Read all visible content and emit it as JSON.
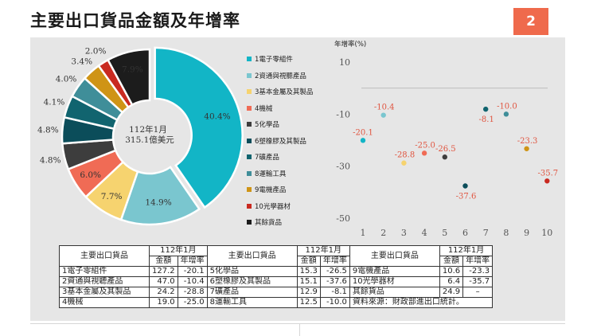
{
  "title": "主要出口貨品金額及年增率",
  "page_number": "2",
  "legend": [
    {
      "label": "1電子零組件",
      "color": "#12b5c6"
    },
    {
      "label": "2資通與視聽產品",
      "color": "#7ac6cf"
    },
    {
      "label": "3基本金屬及其製品",
      "color": "#f6d36f"
    },
    {
      "label": "4機械",
      "color": "#f06b55"
    },
    {
      "label": "5化學品",
      "color": "#3d3d3d"
    },
    {
      "label": "6塑橡膠及其製品",
      "color": "#0b4d5a"
    },
    {
      "label": "7礦產品",
      "color": "#11646f"
    },
    {
      "label": "8運輸工具",
      "color": "#3f8e99"
    },
    {
      "label": "9電機產品",
      "color": "#cf9416"
    },
    {
      "label": "10光學器材",
      "color": "#c92a20"
    },
    {
      "label": "其餘貨品",
      "color": "#1c1c1c"
    }
  ],
  "chart_data": [
    {
      "type": "pie",
      "center_label": [
        "112年1月",
        "315.1億美元"
      ],
      "slices": [
        {
          "label": "1電子零組件",
          "percent": 40.4,
          "color": "#12b5c6",
          "value_label": "40.4%"
        },
        {
          "label": "2資通與視聽產品",
          "percent": 14.9,
          "color": "#7ac6cf",
          "value_label": "14.9%"
        },
        {
          "label": "3基本金屬及其製品",
          "percent": 7.7,
          "color": "#f6d36f",
          "value_label": "7.7%"
        },
        {
          "label": "4機械",
          "percent": 6.0,
          "color": "#f06b55",
          "value_label": "6.0%"
        },
        {
          "label": "5化學品",
          "percent": 4.8,
          "color": "#3d3d3d",
          "value_label": "4.8%"
        },
        {
          "label": "6塑橡膠及其製品",
          "percent": 4.8,
          "color": "#0b4d5a",
          "value_label": "4.8%"
        },
        {
          "label": "7礦產品",
          "percent": 4.1,
          "color": "#11646f",
          "value_label": "4.1%"
        },
        {
          "label": "8運輸工具",
          "percent": 4.0,
          "color": "#3f8e99",
          "value_label": "4.0%"
        },
        {
          "label": "9電機產品",
          "percent": 3.4,
          "color": "#cf9416",
          "value_label": "3.4%"
        },
        {
          "label": "10光學器材",
          "percent": 2.0,
          "color": "#c92a20",
          "value_label": "2.0%"
        },
        {
          "label": "其餘貨品",
          "percent": 7.9,
          "color": "#1c1c1c",
          "value_label": "7.9%"
        }
      ]
    },
    {
      "type": "scatter",
      "ylabel": "年增率(%)",
      "ylim": [
        -50,
        10
      ],
      "yticks": [
        10,
        -10,
        -30,
        -50
      ],
      "xticks": [
        1,
        2,
        3,
        4,
        5,
        6,
        7,
        8,
        9,
        10
      ],
      "points": [
        {
          "x": 1,
          "y": -20.1,
          "label": "-20.1",
          "color": "#12b5c6"
        },
        {
          "x": 2,
          "y": -10.4,
          "label": "-10.4",
          "color": "#7ac6cf"
        },
        {
          "x": 3,
          "y": -28.8,
          "label": "-28.8",
          "color": "#f6d36f"
        },
        {
          "x": 4,
          "y": -25.0,
          "label": "-25.0",
          "color": "#f06b55"
        },
        {
          "x": 5,
          "y": -26.5,
          "label": "-26.5",
          "color": "#3d3d3d"
        },
        {
          "x": 6,
          "y": -37.6,
          "label": "-37.6",
          "color": "#0b4d5a"
        },
        {
          "x": 7,
          "y": -8.1,
          "label": "-8.1",
          "color": "#11646f"
        },
        {
          "x": 8,
          "y": -10.0,
          "label": "-10.0",
          "color": "#3f8e99"
        },
        {
          "x": 9,
          "y": -23.3,
          "label": "-23.3",
          "color": "#cf9416"
        },
        {
          "x": 10,
          "y": -35.7,
          "label": "-35.7",
          "color": "#c92a20"
        }
      ]
    },
    {
      "type": "table",
      "header": {
        "item": "主要出口貨品",
        "period": "112年1月",
        "amount": "金額",
        "growth": "年增率"
      },
      "rows": [
        [
          {
            "name": "1電子零組件",
            "amount": "127.2",
            "growth": "-20.1"
          },
          {
            "name": "5化學品",
            "amount": "15.3",
            "growth": "-26.5"
          },
          {
            "name": "9電機產品",
            "amount": "10.6",
            "growth": "-23.3"
          }
        ],
        [
          {
            "name": "2資通與視聽產品",
            "amount": "47.0",
            "growth": "-10.4"
          },
          {
            "name": "6塑橡膠及其製品",
            "amount": "15.1",
            "growth": "-37.6"
          },
          {
            "name": "10光學器材",
            "amount": "6.4",
            "growth": "-35.7"
          }
        ],
        [
          {
            "name": "3基本金屬及其製品",
            "amount": "24.2",
            "growth": "-28.8"
          },
          {
            "name": "7礦產品",
            "amount": "12.9",
            "growth": "-8.1"
          },
          {
            "name": "其餘貨品",
            "amount": "24.9",
            "growth": "–"
          }
        ],
        [
          {
            "name": "4機械",
            "amount": "19.0",
            "growth": "-25.0"
          },
          {
            "name": "8運輸工具",
            "amount": "12.5",
            "growth": "-10.0"
          }
        ]
      ],
      "source": "資料來源：財政部進出口統計。"
    }
  ]
}
